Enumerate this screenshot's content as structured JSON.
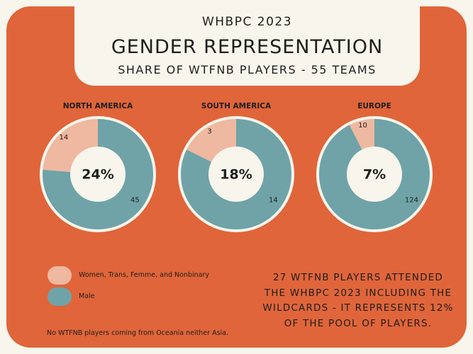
{
  "header": {
    "event": "WHBPC 2023",
    "title": "GENDER REPRESENTATION",
    "subtitle": "SHARE OF WTFNB PLAYERS - 55 TEAMS"
  },
  "colors": {
    "background": "#f7f5ec",
    "frame": "#e0653a",
    "wtfnb": "#efb8a0",
    "male": "#6fa3a7",
    "ring": "#f7f5ec",
    "text": "#1e1e1e"
  },
  "chart_data": [
    {
      "type": "pie",
      "title": "NORTH AMERICA",
      "categories": [
        "Women, Trans, Femme, and Nonbinary",
        "Male"
      ],
      "values": [
        14,
        45
      ],
      "center_label": "24%"
    },
    {
      "type": "pie",
      "title": "SOUTH AMERICA",
      "categories": [
        "Women, Trans, Femme, and Nonbinary",
        "Male"
      ],
      "values": [
        3,
        14
      ],
      "center_label": "18%"
    },
    {
      "type": "pie",
      "title": "EUROPE",
      "categories": [
        "Women, Trans, Femme, and Nonbinary",
        "Male"
      ],
      "values": [
        10,
        124
      ],
      "center_label": "7%"
    }
  ],
  "legend": {
    "wtfnb_label": "Women, Trans, Femme, and Nonbinary",
    "male_label": "Male"
  },
  "note": "No WTFNB players coming from Oceania neither Asia.",
  "summary": {
    "line1": "27 WTFNB PLAYERS ATTENDED",
    "line2": "THE WHBPC 2023 INCLUDING THE",
    "line3": "WILDCARDS - IT REPRESENTS 12%",
    "line4": "OF THE POOL OF PLAYERS."
  }
}
